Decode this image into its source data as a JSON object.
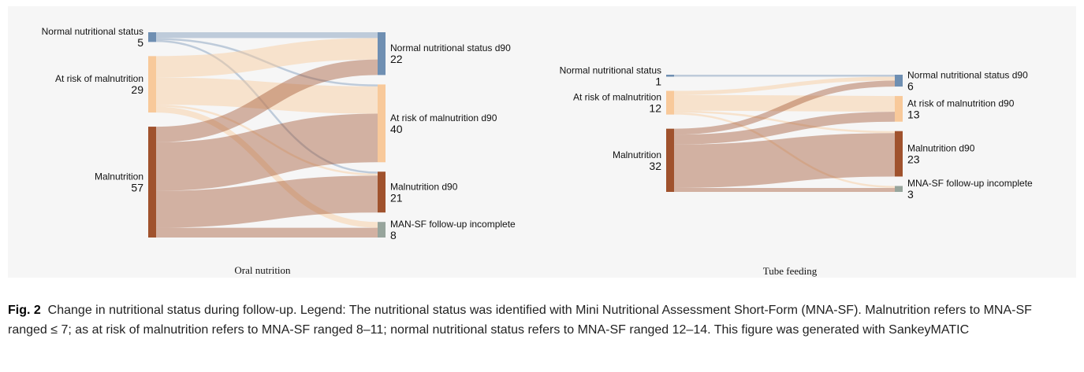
{
  "colors": {
    "normal": "#6f8fb2",
    "risk": "#f8c99a",
    "malnutrition": "#a0522d",
    "incomplete": "#97a59c",
    "background": "#f6f6f6"
  },
  "chart_data": [
    {
      "type": "sankey",
      "title": "Oral nutrition",
      "sources": [
        {
          "label": "Normal nutritional status",
          "value": 5,
          "color_key": "normal"
        },
        {
          "label": "At risk of malnutrition",
          "value": 29,
          "color_key": "risk"
        },
        {
          "label": "Malnutrition",
          "value": 57,
          "color_key": "malnutrition"
        }
      ],
      "targets": [
        {
          "label": "Normal nutritional status d90",
          "value": 22,
          "color_key": "normal"
        },
        {
          "label": "At risk of malnutrition d90",
          "value": 40,
          "color_key": "risk"
        },
        {
          "label": "Malnutrition d90",
          "value": 21,
          "color_key": "malnutrition"
        },
        {
          "label": "MAN-SF follow-up incomplete",
          "value": 8,
          "color_key": "incomplete"
        }
      ],
      "flows": [
        {
          "from": 0,
          "to": 0,
          "value": 3
        },
        {
          "from": 0,
          "to": 1,
          "value": 1
        },
        {
          "from": 0,
          "to": 2,
          "value": 1
        },
        {
          "from": 1,
          "to": 0,
          "value": 11
        },
        {
          "from": 1,
          "to": 1,
          "value": 14
        },
        {
          "from": 1,
          "to": 2,
          "value": 1
        },
        {
          "from": 1,
          "to": 3,
          "value": 3
        },
        {
          "from": 2,
          "to": 0,
          "value": 8
        },
        {
          "from": 2,
          "to": 1,
          "value": 25
        },
        {
          "from": 2,
          "to": 2,
          "value": 19
        },
        {
          "from": 2,
          "to": 3,
          "value": 5
        }
      ]
    },
    {
      "type": "sankey",
      "title": "Tube feeding",
      "sources": [
        {
          "label": "Normal nutritional status",
          "value": 1,
          "color_key": "normal"
        },
        {
          "label": "At risk of malnutrition",
          "value": 12,
          "color_key": "risk"
        },
        {
          "label": "Malnutrition",
          "value": 32,
          "color_key": "malnutrition"
        }
      ],
      "targets": [
        {
          "label": "Normal nutritional status d90",
          "value": 6,
          "color_key": "normal"
        },
        {
          "label": "At risk of malnutrition d90",
          "value": 13,
          "color_key": "risk"
        },
        {
          "label": "Malnutrition d90",
          "value": 23,
          "color_key": "malnutrition"
        },
        {
          "label": "MNA-SF follow-up incomplete",
          "value": 3,
          "color_key": "incomplete"
        }
      ],
      "flows": [
        {
          "from": 0,
          "to": 0,
          "value": 1
        },
        {
          "from": 1,
          "to": 0,
          "value": 2
        },
        {
          "from": 1,
          "to": 1,
          "value": 8
        },
        {
          "from": 1,
          "to": 2,
          "value": 1
        },
        {
          "from": 1,
          "to": 3,
          "value": 1
        },
        {
          "from": 2,
          "to": 0,
          "value": 3
        },
        {
          "from": 2,
          "to": 1,
          "value": 5
        },
        {
          "from": 2,
          "to": 2,
          "value": 22
        },
        {
          "from": 2,
          "to": 3,
          "value": 2
        }
      ]
    }
  ],
  "caption": {
    "label": "Fig. 2",
    "text": "Change in nutritional status during follow-up. Legend: The nutritional status was identified with Mini Nutritional Assessment Short-Form (MNA-SF). Malnutrition refers to MNA-SF ranged ≤ 7; as at risk of malnutrition refers to MNA-SF ranged 8–11; normal nutritional status refers to MNA-SF ranged 12–14. This figure was generated with SankeyMATIC"
  }
}
